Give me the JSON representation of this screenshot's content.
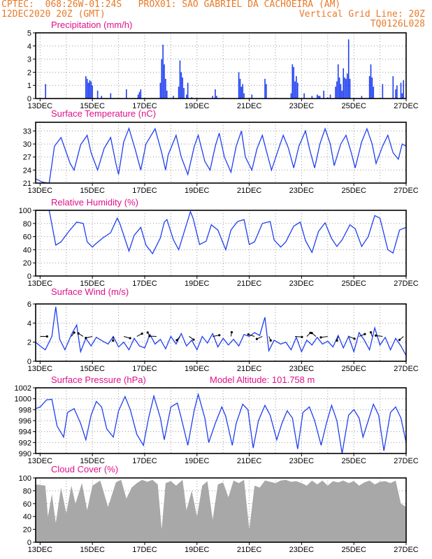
{
  "header": {
    "line1_left": "CPTEC:  068:26W-01:24S   PROX01: SAO GABRIEL DA CACHOEIRA (AM)",
    "line2_left": "12DEC2020 20Z (GMT)",
    "line2_right": "Vertical Grid Line: 20Z",
    "line3_right": "TQ0126L028"
  },
  "colors": {
    "header": "#e87a2a",
    "title": "#e0118a",
    "series": "#1f3ff0",
    "cloud": "#a8a8a8",
    "grid": "#9a9a9a"
  },
  "x_tick_labels": [
    "13DEC",
    "15DEC",
    "17DEC",
    "19DEC",
    "21DEC",
    "23DEC",
    "25DEC",
    "27DEC"
  ],
  "model_altitude": "Model Altitude: 101.758 m",
  "chart_data": [
    {
      "id": "precip",
      "type": "bar",
      "title": "Precipitation (mm/h)",
      "ylim": [
        0,
        5
      ],
      "yticks": [
        "0",
        "1",
        "2",
        "3",
        "4",
        "5"
      ],
      "x_range_days": [
        12.83,
        27.0
      ],
      "x": [
        13.21,
        14.75,
        14.8,
        14.85,
        14.9,
        14.95,
        15.0,
        15.2,
        15.35,
        15.7,
        16.3,
        16.75,
        16.8,
        16.85,
        17.6,
        17.65,
        17.7,
        17.75,
        17.8,
        17.85,
        18.1,
        18.3,
        18.35,
        18.4,
        18.45,
        18.5,
        18.6,
        18.65,
        18.8,
        19.6,
        19.7,
        19.75,
        20.6,
        20.65,
        20.7,
        20.75,
        20.8,
        21.1,
        21.6,
        21.65,
        22.6,
        22.65,
        22.7,
        22.75,
        22.8,
        22.85,
        23.1,
        23.4,
        23.6,
        23.65,
        23.7,
        23.85,
        24.0,
        24.1,
        24.3,
        24.35,
        24.4,
        24.45,
        24.5,
        24.55,
        24.6,
        24.65,
        24.7,
        24.75,
        24.8,
        24.85,
        25.3,
        25.6,
        25.65,
        25.7,
        25.75,
        26.1,
        26.5,
        26.6,
        26.65,
        26.8,
        26.85,
        26.9
      ],
      "values": [
        1.1,
        1.7,
        1.5,
        1.2,
        1.4,
        1.3,
        1.0,
        0.6,
        0.2,
        0.4,
        0.7,
        0.3,
        0.5,
        0.7,
        1.2,
        3.0,
        4.1,
        2.6,
        1.5,
        0.6,
        0.2,
        0.9,
        2.9,
        2.0,
        1.6,
        0.8,
        0.3,
        1.2,
        0.1,
        0.2,
        0.7,
        0.2,
        2.0,
        1.5,
        0.9,
        1.1,
        0.4,
        0.3,
        1.5,
        1.1,
        0.4,
        2.6,
        2.4,
        1.3,
        1.7,
        1.2,
        0.4,
        0.2,
        0.3,
        0.2,
        0.2,
        0.6,
        0.1,
        0.3,
        0.9,
        1.3,
        2.6,
        1.6,
        1.1,
        0.6,
        2.3,
        1.6,
        1.5,
        1.9,
        4.5,
        1.5,
        0.2,
        1.7,
        2.6,
        1.6,
        0.9,
        1.1,
        1.7,
        0.7,
        1.0,
        1.2,
        0.4,
        1.4
      ]
    },
    {
      "id": "temp",
      "type": "line",
      "title": "Surface Temperature (nC)",
      "ylim": [
        21,
        35
      ],
      "yticks": [
        "21",
        "24",
        "27",
        "30",
        "33"
      ],
      "x_range_days": [
        12.83,
        27.0
      ],
      "x": [
        12.83,
        13.1,
        13.35,
        13.55,
        13.8,
        14.15,
        14.3,
        14.55,
        14.8,
        14.95,
        15.2,
        15.45,
        15.7,
        15.9,
        16.0,
        16.2,
        16.4,
        16.65,
        16.85,
        17.05,
        17.4,
        17.65,
        17.8,
        17.9,
        18.2,
        18.4,
        18.65,
        18.9,
        19.05,
        19.3,
        19.5,
        19.7,
        19.85,
        20.05,
        20.3,
        20.5,
        20.7,
        20.85,
        21.1,
        21.3,
        21.5,
        21.65,
        21.85,
        22.1,
        22.3,
        22.5,
        22.7,
        22.9,
        23.15,
        23.3,
        23.5,
        23.7,
        23.9,
        24.1,
        24.25,
        24.5,
        24.7,
        24.9,
        25.05,
        25.3,
        25.5,
        25.7,
        25.85,
        26.1,
        26.3,
        26.5,
        26.7,
        26.85,
        27.0
      ],
      "values": [
        22.0,
        21.2,
        21.0,
        29.5,
        31.5,
        25.5,
        24.0,
        29.8,
        32.0,
        28.0,
        24.0,
        29.0,
        31.5,
        25.5,
        23.0,
        30.5,
        33.6,
        28.5,
        24.0,
        30.0,
        33.5,
        28.0,
        24.0,
        27.5,
        32.0,
        27.0,
        23.0,
        29.5,
        32.0,
        26.0,
        24.0,
        29.5,
        32.5,
        27.0,
        23.5,
        29.5,
        33.0,
        27.0,
        24.0,
        29.0,
        32.0,
        28.5,
        24.0,
        28.5,
        32.0,
        29.0,
        24.5,
        29.5,
        33.0,
        29.0,
        24.5,
        30.0,
        33.5,
        30.0,
        25.0,
        30.0,
        32.0,
        28.0,
        24.5,
        30.5,
        33.5,
        30.0,
        25.5,
        29.5,
        32.0,
        28.0,
        26.5,
        30.0,
        29.5
      ]
    },
    {
      "id": "rh",
      "type": "line",
      "title": "Relative Humidity (%)",
      "ylim": [
        0,
        100
      ],
      "yticks": [
        "0",
        "20",
        "40",
        "60",
        "80",
        "100"
      ],
      "x_range_days": [
        12.83,
        27.0
      ],
      "x": [
        12.83,
        13.35,
        13.6,
        13.8,
        14.1,
        14.4,
        14.65,
        14.8,
        15.0,
        15.1,
        15.4,
        15.7,
        15.95,
        16.05,
        16.4,
        16.6,
        16.85,
        17.05,
        17.3,
        17.6,
        17.75,
        17.85,
        18.1,
        18.3,
        18.55,
        18.75,
        18.85,
        19.1,
        19.35,
        19.55,
        19.8,
        20.1,
        20.3,
        20.55,
        20.8,
        21.0,
        21.2,
        21.5,
        21.8,
        21.95,
        22.2,
        22.4,
        22.7,
        22.95,
        23.15,
        23.4,
        23.65,
        23.9,
        24.15,
        24.35,
        24.55,
        24.85,
        25.05,
        25.3,
        25.55,
        25.8,
        26.0,
        26.3,
        26.5,
        26.75,
        27.0
      ],
      "values": [
        100,
        100,
        47,
        52,
        68,
        82,
        80,
        52,
        44,
        48,
        58,
        66,
        88,
        80,
        38,
        62,
        74,
        47,
        34,
        58,
        82,
        86,
        55,
        40,
        72,
        98,
        88,
        48,
        53,
        78,
        70,
        40,
        70,
        83,
        86,
        48,
        52,
        80,
        83,
        55,
        44,
        52,
        76,
        82,
        54,
        36,
        68,
        81,
        57,
        45,
        55,
        78,
        72,
        45,
        60,
        92,
        88,
        40,
        35,
        70,
        74
      ]
    },
    {
      "id": "wind",
      "type": "line",
      "title": "Surface Wind (m/s)",
      "ylim": [
        0,
        6
      ],
      "yticks": [
        "0",
        "2",
        "4",
        "6"
      ],
      "x_range_days": [
        12.83,
        27.0
      ],
      "x": [
        12.83,
        13.0,
        13.2,
        13.45,
        13.6,
        13.75,
        13.95,
        14.2,
        14.4,
        14.55,
        14.75,
        14.95,
        15.15,
        15.4,
        15.6,
        15.8,
        16.0,
        16.2,
        16.4,
        16.6,
        16.8,
        17.0,
        17.2,
        17.4,
        17.6,
        17.8,
        18.0,
        18.2,
        18.4,
        18.6,
        18.8,
        19.0,
        19.2,
        19.4,
        19.6,
        19.8,
        20.0,
        20.2,
        20.4,
        20.6,
        20.8,
        21.0,
        21.2,
        21.4,
        21.6,
        21.75,
        21.95,
        22.2,
        22.4,
        22.6,
        22.8,
        23.0,
        23.2,
        23.4,
        23.6,
        23.8,
        24.0,
        24.2,
        24.4,
        24.6,
        24.8,
        25.0,
        25.2,
        25.4,
        25.6,
        25.8,
        26.0,
        26.2,
        26.4,
        26.6,
        26.8,
        27.0
      ],
      "values": [
        2.0,
        1.6,
        1.2,
        2.6,
        5.7,
        2.3,
        1.2,
        2.8,
        3.8,
        1.0,
        2.4,
        1.6,
        2.5,
        2.1,
        1.8,
        2.6,
        1.5,
        2.0,
        1.2,
        2.4,
        1.6,
        1.4,
        2.8,
        1.8,
        2.3,
        1.3,
        2.6,
        1.8,
        2.9,
        1.6,
        2.2,
        1.2,
        2.6,
        1.9,
        2.9,
        1.5,
        2.4,
        1.7,
        2.3,
        1.6,
        2.8,
        2.6,
        3.0,
        2.7,
        4.6,
        1.1,
        2.2,
        1.8,
        2.0,
        1.2,
        2.5,
        1.0,
        2.2,
        1.7,
        2.5,
        1.8,
        2.1,
        1.5,
        2.7,
        1.4,
        2.6,
        1.0,
        3.0,
        2.2,
        1.2,
        3.5,
        1.7,
        2.5,
        1.2,
        2.4,
        1.6,
        0.6
      ]
    },
    {
      "id": "pressure",
      "type": "line",
      "title": "Surface Pressure (hPa)",
      "ylim": [
        990,
        1002
      ],
      "yticks": [
        "990",
        "992",
        "994",
        "996",
        "998",
        "1000",
        "1002"
      ],
      "x_range_days": [
        12.83,
        27.0
      ],
      "x": [
        12.83,
        13.0,
        13.25,
        13.45,
        13.65,
        13.9,
        14.05,
        14.3,
        14.55,
        14.75,
        14.95,
        15.15,
        15.35,
        15.55,
        15.8,
        16.0,
        16.25,
        16.45,
        16.7,
        16.95,
        17.15,
        17.35,
        17.6,
        17.75,
        18.0,
        18.25,
        18.4,
        18.65,
        18.9,
        19.05,
        19.3,
        19.45,
        19.7,
        19.95,
        20.1,
        20.35,
        20.5,
        20.75,
        20.95,
        21.15,
        21.35,
        21.6,
        21.8,
        22.05,
        22.25,
        22.45,
        22.65,
        22.85,
        23.05,
        23.3,
        23.5,
        23.75,
        23.95,
        24.15,
        24.35,
        24.55,
        24.8,
        25.0,
        25.2,
        25.35,
        25.55,
        25.75,
        25.95,
        26.15,
        26.4,
        26.6,
        26.8,
        27.0
      ],
      "values": [
        998.2,
        998.5,
        999.8,
        999.9,
        995.0,
        993.0,
        997.5,
        998.2,
        995.5,
        992.5,
        997.0,
        999.5,
        998.5,
        994.5,
        993.0,
        997.8,
        1000.4,
        998.0,
        993.5,
        991.5,
        996.5,
        1000.5,
        996.5,
        992.5,
        998.5,
        999.2,
        996.5,
        991.5,
        998.0,
        1000.8,
        996.5,
        992.0,
        995.5,
        998.5,
        996.8,
        991.5,
        995.5,
        999.0,
        998.0,
        991.0,
        996.0,
        998.8,
        997.0,
        992.5,
        995.5,
        997.8,
        996.5,
        990.8,
        997.5,
        998.5,
        996.0,
        991.5,
        995.5,
        998.8,
        996.0,
        990.0,
        997.0,
        998.0,
        996.5,
        993.0,
        996.0,
        999.0,
        997.0,
        990.5,
        997.5,
        998.5,
        996.5,
        992.0
      ]
    },
    {
      "id": "cloud",
      "type": "area",
      "title": "Cloud Cover (%)",
      "ylim": [
        0,
        100
      ],
      "yticks": [
        "0",
        "20",
        "40",
        "60",
        "80",
        "100"
      ],
      "x_range_days": [
        12.83,
        27.0
      ],
      "x": [
        12.83,
        13.2,
        13.3,
        13.45,
        13.6,
        13.8,
        14.0,
        14.2,
        14.35,
        14.6,
        14.8,
        15.0,
        15.3,
        15.6,
        15.9,
        16.1,
        16.3,
        16.5,
        16.7,
        16.9,
        17.1,
        17.3,
        17.5,
        17.65,
        17.8,
        18.0,
        18.2,
        18.45,
        18.6,
        18.8,
        19.0,
        19.2,
        19.4,
        19.6,
        19.8,
        20.0,
        20.2,
        20.4,
        20.6,
        20.8,
        21.0,
        21.2,
        21.4,
        21.6,
        21.8,
        22.0,
        22.2,
        22.4,
        22.6,
        22.8,
        23.0,
        23.2,
        23.4,
        23.6,
        23.8,
        24.0,
        24.2,
        24.4,
        24.6,
        24.8,
        25.0,
        25.2,
        25.4,
        25.6,
        25.8,
        26.0,
        26.2,
        26.4,
        26.6,
        26.8,
        27.0
      ],
      "values": [
        90,
        88,
        40,
        75,
        30,
        85,
        45,
        88,
        60,
        92,
        50,
        88,
        96,
        55,
        93,
        97,
        68,
        85,
        92,
        97,
        94,
        97,
        90,
        20,
        92,
        95,
        88,
        97,
        50,
        80,
        40,
        88,
        95,
        35,
        90,
        93,
        70,
        96,
        92,
        97,
        20,
        88,
        85,
        96,
        94,
        92,
        96,
        97,
        94,
        95,
        92,
        88,
        96,
        90,
        96,
        88,
        95,
        93,
        96,
        92,
        95,
        88,
        93,
        96,
        90,
        94,
        95,
        92,
        96,
        60,
        55
      ]
    }
  ]
}
